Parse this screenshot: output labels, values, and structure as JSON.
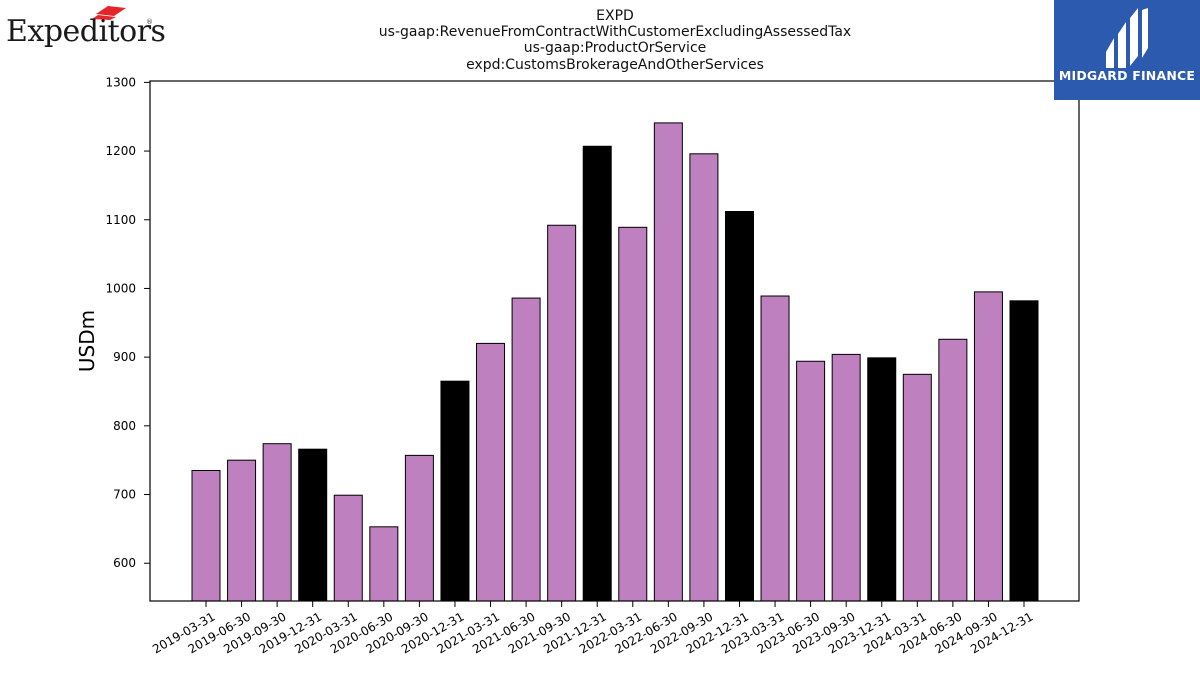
{
  "logos": {
    "left": "Expeditors",
    "left_reg": "®",
    "right": "MIDGARD FINANCE",
    "left_accent_color": "#e5252a",
    "right_bg_color": "#2c5aae"
  },
  "chart_data": {
    "type": "bar",
    "title_lines": [
      "EXPD",
      "us-gaap:RevenueFromContractWithCustomerExcludingAssessedTax",
      "us-gaap:ProductOrService",
      "expd:CustomsBrokerageAndOtherServices"
    ],
    "ylabel": "USDm",
    "xlabel": "",
    "ylim": [
      545,
      1302
    ],
    "yticks": [
      600,
      700,
      800,
      900,
      1000,
      1100,
      1200,
      1300
    ],
    "categories": [
      "2019-03-31",
      "2019-06-30",
      "2019-09-30",
      "2019-12-31",
      "2020-03-31",
      "2020-06-30",
      "2020-09-30",
      "2020-12-31",
      "2021-03-31",
      "2021-06-30",
      "2021-09-30",
      "2021-12-31",
      "2022-03-31",
      "2022-06-30",
      "2022-09-30",
      "2022-12-31",
      "2023-03-31",
      "2023-06-30",
      "2023-09-30",
      "2023-12-31",
      "2024-03-31",
      "2024-06-30",
      "2024-09-30",
      "2024-12-31"
    ],
    "values": [
      735,
      750,
      774,
      766,
      699,
      653,
      757,
      865,
      920,
      986,
      1092,
      1207,
      1089,
      1241,
      1196,
      1112,
      989,
      894,
      904,
      899,
      875,
      926,
      995,
      982
    ],
    "bar_colors": [
      "#bf80bf",
      "#bf80bf",
      "#bf80bf",
      "#000000",
      "#bf80bf",
      "#bf80bf",
      "#bf80bf",
      "#000000",
      "#bf80bf",
      "#bf80bf",
      "#bf80bf",
      "#000000",
      "#bf80bf",
      "#bf80bf",
      "#bf80bf",
      "#000000",
      "#bf80bf",
      "#bf80bf",
      "#bf80bf",
      "#000000",
      "#bf80bf",
      "#bf80bf",
      "#bf80bf",
      "#000000"
    ],
    "grid": false,
    "legend": "none"
  }
}
